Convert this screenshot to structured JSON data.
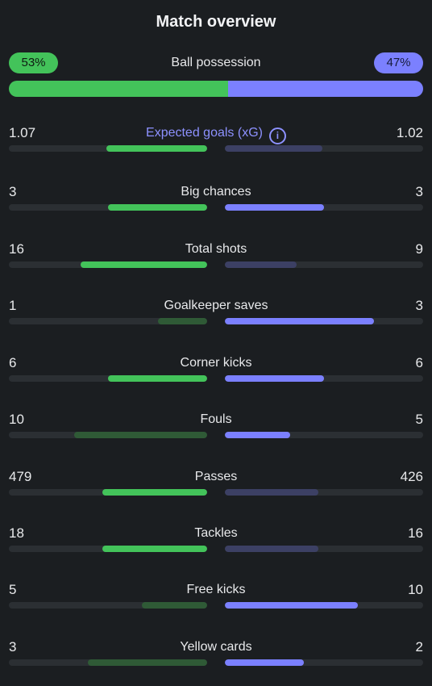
{
  "title": "Match overview",
  "possession": {
    "label": "Ball possession",
    "home": "53%",
    "away": "47%",
    "home_pct": 53,
    "away_pct": 47
  },
  "colors": {
    "home_strong": "#43c35a",
    "home_weak": "#2f5a36",
    "away_strong": "#7b80ff",
    "away_weak": "#3c4064"
  },
  "stats": [
    {
      "label": "Expected goals (xG)",
      "home": "1.07",
      "away": "1.02",
      "home_frac": 0.51,
      "away_frac": 0.49,
      "leader": "home",
      "info": true
    },
    {
      "label": "Big chances",
      "home": "3",
      "away": "3",
      "home_frac": 0.5,
      "away_frac": 0.5,
      "leader": "both"
    },
    {
      "label": "Total shots",
      "home": "16",
      "away": "9",
      "home_frac": 0.64,
      "away_frac": 0.36,
      "leader": "home"
    },
    {
      "label": "Goalkeeper saves",
      "home": "1",
      "away": "3",
      "home_frac": 0.25,
      "away_frac": 0.75,
      "leader": "away"
    },
    {
      "label": "Corner kicks",
      "home": "6",
      "away": "6",
      "home_frac": 0.5,
      "away_frac": 0.5,
      "leader": "both"
    },
    {
      "label": "Fouls",
      "home": "10",
      "away": "5",
      "home_frac": 0.67,
      "away_frac": 0.33,
      "leader": "away"
    },
    {
      "label": "Passes",
      "home": "479",
      "away": "426",
      "home_frac": 0.53,
      "away_frac": 0.47,
      "leader": "home"
    },
    {
      "label": "Tackles",
      "home": "18",
      "away": "16",
      "home_frac": 0.53,
      "away_frac": 0.47,
      "leader": "home"
    },
    {
      "label": "Free kicks",
      "home": "5",
      "away": "10",
      "home_frac": 0.33,
      "away_frac": 0.67,
      "leader": "away"
    },
    {
      "label": "Yellow cards",
      "home": "3",
      "away": "2",
      "home_frac": 0.6,
      "away_frac": 0.4,
      "leader": "away"
    }
  ]
}
